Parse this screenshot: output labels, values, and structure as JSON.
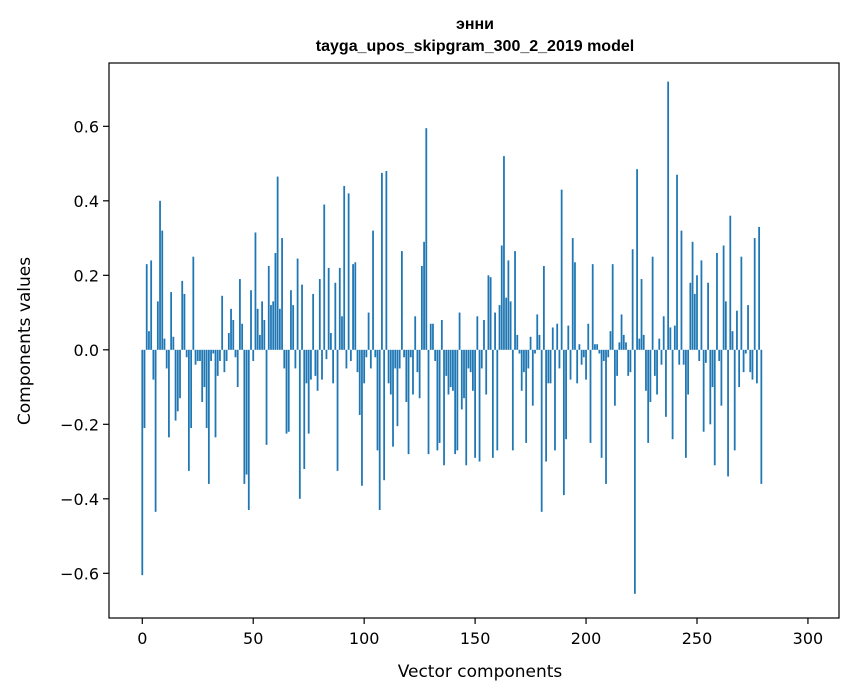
{
  "chart_data": {
    "type": "bar",
    "title": "энни",
    "subtitle": "tayga_upos_skipgram_300_2_2019 model",
    "xlabel": "Vector components",
    "ylabel": "Components values",
    "xlim": [
      -15,
      314
    ],
    "ylim": [
      -0.72,
      0.77
    ],
    "xticks": [
      0,
      50,
      100,
      150,
      200,
      250,
      300
    ],
    "yticks": [
      -0.6,
      -0.4,
      -0.2,
      0.0,
      0.2,
      0.4,
      0.6
    ],
    "xtick_labels": [
      "0",
      "50",
      "100",
      "150",
      "200",
      "250",
      "300"
    ],
    "ytick_labels": [
      "−0.6",
      "−0.4",
      "−0.2",
      "0.0",
      "0.2",
      "0.4",
      "0.6"
    ],
    "bar_color": "#1f77b4",
    "grid": false,
    "x_start": 0,
    "values": [
      -0.605,
      -0.21,
      0.23,
      0.05,
      0.24,
      -0.08,
      -0.435,
      0.13,
      0.4,
      0.32,
      0.03,
      -0.05,
      -0.235,
      0.155,
      0.035,
      -0.19,
      -0.165,
      -0.13,
      0.185,
      0.15,
      -0.02,
      -0.325,
      -0.21,
      0.25,
      -0.04,
      -0.03,
      -0.03,
      -0.14,
      -0.1,
      -0.21,
      -0.36,
      -0.03,
      -0.01,
      -0.235,
      -0.07,
      -0.03,
      0.145,
      -0.06,
      -0.03,
      0.045,
      0.11,
      0.08,
      -0.02,
      -0.1,
      0.19,
      0.07,
      -0.36,
      -0.335,
      -0.43,
      0.16,
      -0.03,
      0.315,
      0.11,
      0.04,
      0.13,
      0.08,
      -0.255,
      0.225,
      0.12,
      0.13,
      0.26,
      0.465,
      0.11,
      0.3,
      -0.05,
      -0.225,
      -0.22,
      0.16,
      0.12,
      -0.05,
      0.245,
      -0.4,
      0.175,
      -0.32,
      -0.09,
      -0.225,
      -0.08,
      0.15,
      -0.07,
      -0.11,
      0.19,
      -0.08,
      0.39,
      -0.025,
      0.22,
      0.045,
      -0.09,
      0.18,
      -0.325,
      0.22,
      0.09,
      0.44,
      -0.05,
      0.42,
      -0.03,
      0.23,
      0.235,
      -0.06,
      -0.175,
      -0.365,
      -0.09,
      -0.02,
      0.1,
      -0.05,
      0.32,
      -0.02,
      -0.27,
      -0.43,
      0.475,
      -0.35,
      0.48,
      -0.09,
      -0.12,
      -0.26,
      -0.05,
      -0.205,
      -0.05,
      0.265,
      -0.02,
      -0.14,
      -0.28,
      -0.02,
      -0.12,
      0.09,
      -0.06,
      -0.13,
      0.225,
      0.29,
      0.595,
      -0.28,
      0.07,
      0.07,
      -0.03,
      -0.27,
      -0.25,
      0.08,
      -0.31,
      -0.07,
      -0.12,
      -0.1,
      -0.11,
      -0.28,
      -0.27,
      0.1,
      -0.16,
      -0.13,
      -0.31,
      -0.05,
      -0.06,
      -0.11,
      -0.29,
      0.09,
      -0.3,
      -0.05,
      0.08,
      -0.12,
      0.2,
      0.195,
      -0.29,
      0.1,
      -0.27,
      0.12,
      0.28,
      0.52,
      0.14,
      0.24,
      0.13,
      -0.27,
      0.265,
      0.04,
      -0.01,
      -0.11,
      -0.06,
      -0.25,
      -0.05,
      0.035,
      -0.15,
      -0.01,
      0.095,
      0.04,
      -0.435,
      0.225,
      -0.3,
      -0.09,
      -0.09,
      0.06,
      -0.27,
      0.07,
      -0.05,
      0.43,
      -0.39,
      -0.24,
      0.065,
      -0.08,
      0.3,
      0.235,
      -0.09,
      0.015,
      -0.04,
      -0.02,
      -0.08,
      0.07,
      -0.25,
      0.23,
      0.015,
      0.015,
      -0.01,
      -0.29,
      -0.03,
      -0.36,
      -0.02,
      0.05,
      0.23,
      -0.15,
      -0.07,
      0.02,
      0.095,
      0.04,
      0.02,
      -0.07,
      -0.06,
      0.27,
      -0.655,
      0.485,
      0.03,
      0.19,
      0.04,
      -0.11,
      -0.25,
      -0.14,
      0.25,
      -0.07,
      -0.12,
      0.03,
      -0.04,
      0.09,
      -0.18,
      0.72,
      0.06,
      -0.24,
      0.065,
      0.47,
      -0.04,
      0.32,
      -0.04,
      -0.29,
      -0.12,
      0.18,
      0.29,
      0.15,
      0.2,
      -0.03,
      0.24,
      -0.22,
      -0.035,
      0.18,
      -0.2,
      -0.1,
      -0.31,
      0.26,
      -0.03,
      -0.15,
      0.28,
      0.13,
      -0.34,
      0.36,
      0.05,
      -0.27,
      0.105,
      -0.1,
      0.25,
      -0.06,
      -0.01,
      0.12,
      -0.06,
      -0.08,
      0.3,
      -0.09,
      0.33,
      -0.36
    ]
  }
}
